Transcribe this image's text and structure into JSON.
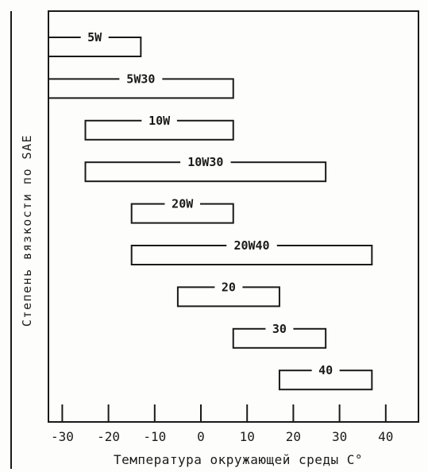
{
  "chart_data": {
    "type": "bar",
    "subtype": "floating-range",
    "title": "",
    "xlabel": "Температура окружающей среды С°",
    "ylabel": "Степень вязкости по SAE",
    "xlim": [
      -35,
      43
    ],
    "x_ticks": [
      -30,
      -20,
      -10,
      0,
      10,
      20,
      30,
      40
    ],
    "x_tick_labels": [
      "-30",
      "-20",
      "-10",
      "0",
      "10",
      "20",
      "30",
      "40"
    ],
    "grid": false,
    "legend": "none",
    "bar_fill": "none",
    "bar_stroke": "#1a1a1a",
    "series": [
      {
        "name": "5W",
        "x_min": -35,
        "x_max": -13
      },
      {
        "name": "5W30",
        "x_min": -35,
        "x_max": 7
      },
      {
        "name": "10W",
        "x_min": -25,
        "x_max": 7
      },
      {
        "name": "10W30",
        "x_min": -25,
        "x_max": 27
      },
      {
        "name": "20W",
        "x_min": -15,
        "x_max": 7
      },
      {
        "name": "20W40",
        "x_min": -15,
        "x_max": 37
      },
      {
        "name": "20",
        "x_min": -5,
        "x_max": 17
      },
      {
        "name": "30",
        "x_min": 7,
        "x_max": 27
      },
      {
        "name": "40",
        "x_min": 17,
        "x_max": 37
      }
    ]
  }
}
